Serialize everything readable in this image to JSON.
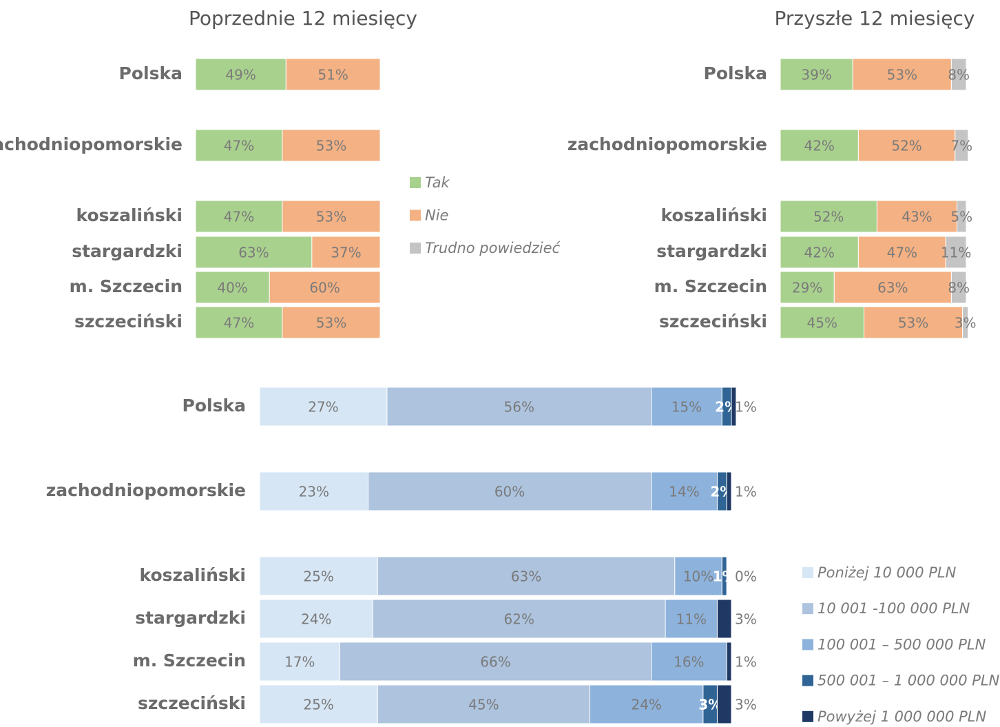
{
  "chart_data": [
    {
      "type": "stacked-bar",
      "title": "Poprzednie 12 miesięcy",
      "categories": [
        "Polska",
        "zachodniopomorskie",
        "koszaliński",
        "stargardzki",
        "m. Szczecin",
        "szczeciński"
      ],
      "xlim": [
        0,
        100
      ],
      "series": [
        {
          "color": "#a9d18e",
          "values": [
            49,
            47,
            47,
            63,
            40,
            47
          ],
          "value_labels": [
            "49%",
            "47%",
            "47%",
            "63%",
            "40%",
            "47%"
          ]
        },
        {
          "color": "#f4b183",
          "values": [
            51,
            53,
            53,
            37,
            60,
            53
          ],
          "value_labels": [
            "51%",
            "53%",
            "53%",
            "37%",
            "60%",
            "53%"
          ]
        }
      ]
    },
    {
      "type": "stacked-bar",
      "title": "Przyszłe 12 miesięcy",
      "categories": [
        "Polska",
        "zachodniopomorskie",
        "koszaliński",
        "stargardzki",
        "m. Szczecin",
        "szczeciński"
      ],
      "xlim": [
        0,
        100
      ],
      "legend": "left",
      "series": [
        {
          "name": "Tak",
          "color": "#a9d18e",
          "values": [
            39,
            42,
            52,
            42,
            29,
            45
          ],
          "value_labels": [
            "39%",
            "42%",
            "52%",
            "42%",
            "29%",
            "45%"
          ]
        },
        {
          "name": "Nie",
          "color": "#f4b183",
          "values": [
            53,
            52,
            43,
            47,
            63,
            53
          ],
          "value_labels": [
            "53%",
            "52%",
            "43%",
            "47%",
            "63%",
            "53%"
          ]
        },
        {
          "name": "Trudno powiedzieć",
          "color": "#c4c4c4",
          "values": [
            8,
            7,
            5,
            11,
            8,
            3
          ],
          "value_labels": [
            "8%",
            "7%",
            "5%",
            "11%",
            "8%",
            "3%"
          ]
        }
      ]
    },
    {
      "type": "stacked-bar",
      "categories": [
        "Polska",
        "zachodniopomorskie",
        "koszaliński",
        "stargardzki",
        "m. Szczecin",
        "szczeciński"
      ],
      "xlim": [
        0,
        100
      ],
      "legend": "right",
      "series": [
        {
          "name": "Poniżej 10 000 PLN",
          "color": "#d6e6f5",
          "values": [
            27,
            23,
            25,
            24,
            17,
            25
          ],
          "value_labels": [
            "27%",
            "23%",
            "25%",
            "24%",
            "17%",
            "25%"
          ]
        },
        {
          "name": "10 001 -100 000 PLN",
          "color": "#adc3de",
          "values": [
            56,
            60,
            63,
            62,
            66,
            45
          ],
          "value_labels": [
            "56%",
            "60%",
            "63%",
            "62%",
            "66%",
            "45%"
          ]
        },
        {
          "name": "100 001 – 500 000 PLN",
          "color": "#8db2dc",
          "values": [
            15,
            14,
            10,
            11,
            16,
            24
          ],
          "value_labels": [
            "15%",
            "14%",
            "10%",
            "11%",
            "16%",
            "24%"
          ]
        },
        {
          "name": "500 001 – 1 000 000 PLN",
          "color": "#2f6495",
          "values": [
            2,
            2,
            1,
            null,
            null,
            3
          ],
          "value_labels": [
            "2%",
            "2%",
            "1%",
            null,
            null,
            "3%"
          ]
        },
        {
          "name": "Powyżej 1 000 000 PLN",
          "color": "#1f3864",
          "values": [
            1,
            1,
            0,
            3,
            1,
            3
          ],
          "value_labels": [
            "1%",
            "1%",
            "0%",
            "3%",
            "1%",
            "3%"
          ]
        }
      ]
    }
  ]
}
